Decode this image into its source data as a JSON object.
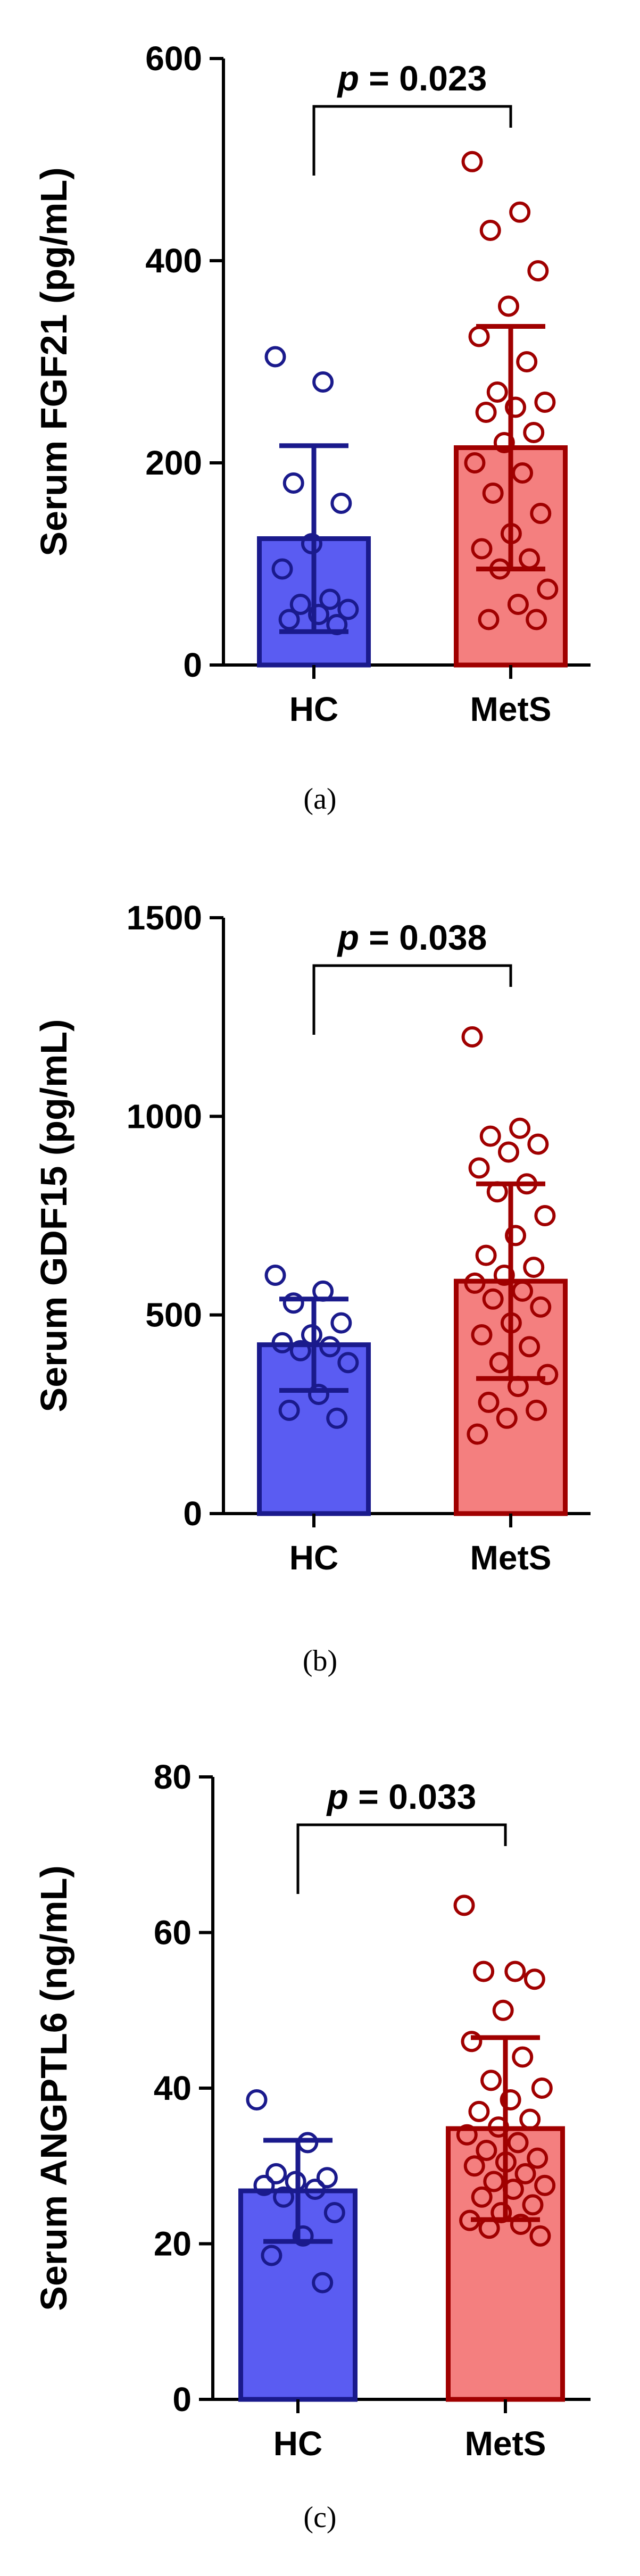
{
  "chart_data": [
    {
      "type": "bar",
      "caption": "(a)",
      "ylabel": "Serum FGF21 (pg/mL)",
      "ylim": [
        0,
        600
      ],
      "yticks": [
        0,
        200,
        400,
        600
      ],
      "categories": [
        "HC",
        "MetS"
      ],
      "values": [
        125,
        215
      ],
      "error_sd": [
        92,
        120
      ],
      "p_label": "p = 0.023",
      "colors": {
        "HC_fill": "#5a5cf2",
        "HC_edge": "#1a1a8c",
        "MetS_fill": "#f47f7f",
        "MetS_edge": "#a00000"
      },
      "points": {
        "HC": [
          305,
          280,
          180,
          160,
          120,
          95,
          65,
          60,
          55,
          50,
          45,
          40
        ],
        "MetS": [
          498,
          448,
          430,
          390,
          355,
          325,
          300,
          270,
          260,
          255,
          250,
          230,
          220,
          200,
          190,
          170,
          150,
          130,
          115,
          105,
          95,
          75,
          60,
          45,
          45
        ]
      }
    },
    {
      "type": "bar",
      "caption": "(b)",
      "ylabel": "Serum GDF15 (pg/mL)",
      "ylim": [
        0,
        1500
      ],
      "yticks": [
        0,
        500,
        1000,
        1500
      ],
      "categories": [
        "HC",
        "MetS"
      ],
      "values": [
        425,
        585
      ],
      "error_sd": [
        115,
        245
      ],
      "p_label": "p = 0.038",
      "colors": {
        "HC_fill": "#5a5cf2",
        "HC_edge": "#1a1a8c",
        "MetS_fill": "#f47f7f",
        "MetS_edge": "#a00000"
      },
      "points": {
        "HC": [
          600,
          560,
          530,
          480,
          450,
          430,
          420,
          410,
          380,
          300,
          260,
          240
        ],
        "MetS": [
          1200,
          970,
          950,
          930,
          910,
          870,
          830,
          810,
          750,
          700,
          650,
          620,
          600,
          580,
          560,
          540,
          520,
          480,
          450,
          420,
          380,
          350,
          320,
          280,
          260,
          240,
          200
        ]
      }
    },
    {
      "type": "bar",
      "caption": "(c)",
      "ylabel": "Serum ANGPTL6 (ng/mL)",
      "ylim": [
        0,
        80
      ],
      "yticks": [
        0,
        20,
        40,
        60,
        80
      ],
      "categories": [
        "HC",
        "MetS"
      ],
      "values": [
        26.8,
        34.8
      ],
      "error_sd": [
        6.5,
        11.7
      ],
      "p_label": "p = 0.033",
      "colors": {
        "HC_fill": "#5a5cf2",
        "HC_edge": "#1a1a8c",
        "MetS_fill": "#f47f7f",
        "MetS_edge": "#a00000"
      },
      "points": {
        "HC": [
          38.5,
          33,
          29,
          28.5,
          28,
          27.5,
          27,
          26,
          24,
          21,
          18.5,
          15
        ],
        "MetS": [
          63.5,
          55,
          55,
          54,
          50,
          46,
          44,
          41,
          40,
          38.5,
          37,
          36,
          35,
          34,
          33,
          32,
          31,
          30.5,
          30,
          29,
          28,
          27.5,
          27,
          26,
          25,
          24,
          23,
          22.5,
          22,
          21
        ]
      }
    }
  ]
}
